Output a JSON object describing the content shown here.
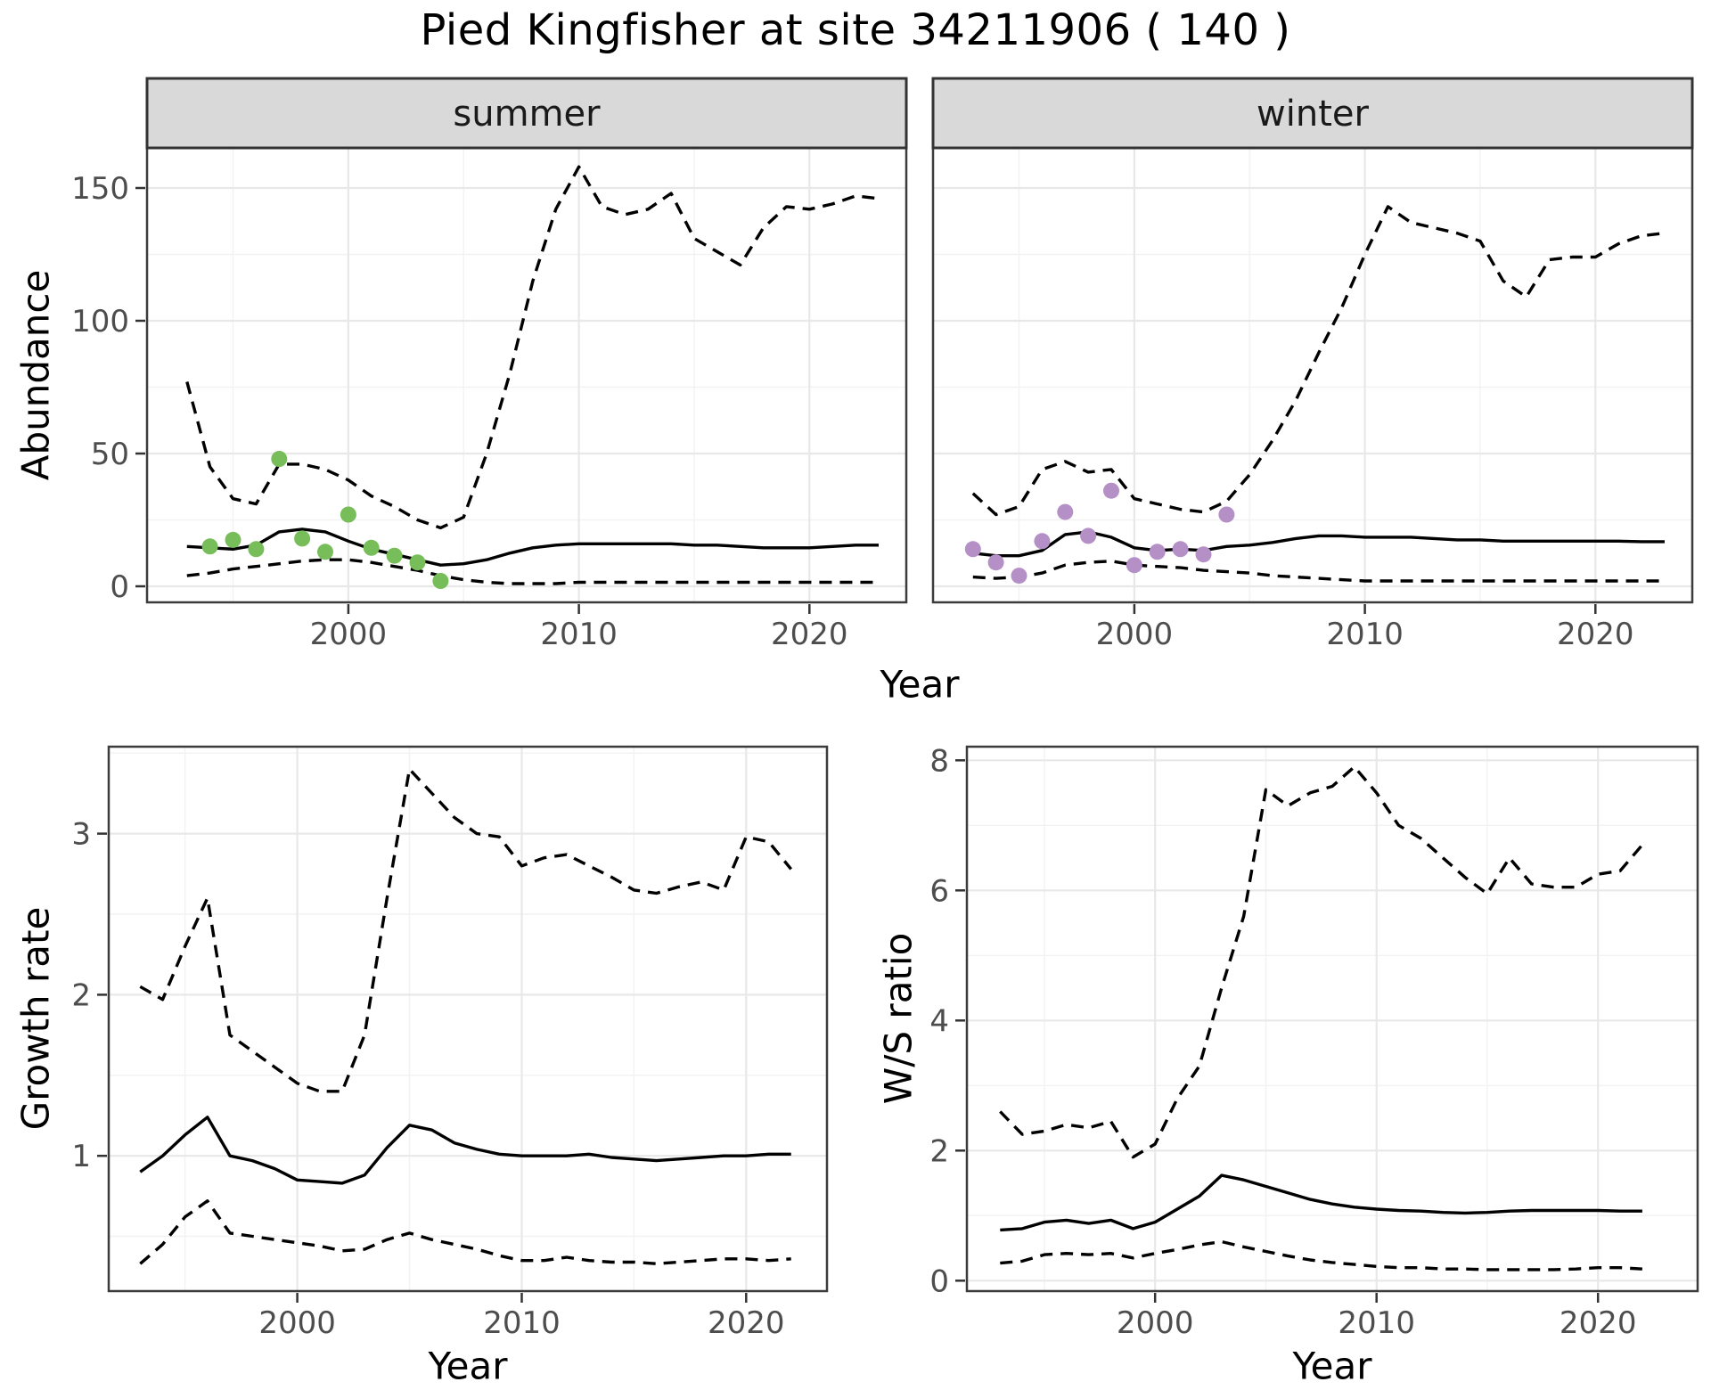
{
  "title": "Pied Kingfisher at site 34211906 ( 140 )",
  "colors": {
    "summer_points": "#77bd5a",
    "winter_points": "#b490c6",
    "line": "#000000",
    "grid_major": "#e8e8e8",
    "grid_minor": "#f2f2f2",
    "strip_bg": "#d9d9d9",
    "panel_border": "#3c3c3c",
    "tick_text": "#4d4d4d"
  },
  "chart_data": [
    {
      "id": "abundance_summer",
      "type": "line",
      "facet_label": "summer",
      "xlabel": "Year",
      "ylabel": "Abundance",
      "xlim": [
        1991.27,
        2024.2
      ],
      "ylim": [
        -6.04,
        165.1
      ],
      "xticks": {
        "values": [
          2000,
          2010,
          2020
        ],
        "labels": [
          "2000",
          "2010",
          "2020"
        ]
      },
      "yticks": {
        "values": [
          0,
          50,
          100,
          150
        ],
        "labels": [
          "0",
          "50",
          "100",
          "150"
        ]
      },
      "minor_x": [
        1995,
        2005,
        2015
      ],
      "minor_y": [
        25,
        75,
        125
      ],
      "show_y_axis": true,
      "x_years": [
        1993,
        1994,
        1995,
        1996,
        1997,
        1998,
        1999,
        2000,
        2001,
        2002,
        2003,
        2004,
        2005,
        2006,
        2007,
        2008,
        2009,
        2010,
        2011,
        2012,
        2013,
        2014,
        2015,
        2016,
        2017,
        2018,
        2019,
        2020,
        2021,
        2022,
        2023
      ],
      "series": [
        {
          "name": "upper_ci",
          "style": "dashed",
          "values": [
            77,
            45,
            33,
            31,
            46,
            46,
            44,
            40,
            34,
            30,
            25,
            22,
            26,
            50,
            80,
            115,
            142,
            158,
            143,
            140,
            142,
            148,
            131,
            126,
            121,
            135,
            143,
            142,
            144,
            147,
            146
          ]
        },
        {
          "name": "lower_ci",
          "style": "dashed",
          "values": [
            4,
            5,
            6.5,
            7.5,
            8.5,
            9.5,
            10,
            10,
            9,
            7.5,
            6,
            4,
            2.5,
            1.5,
            1,
            1,
            1,
            1.5,
            1.5,
            1.5,
            1.5,
            1.5,
            1.5,
            1.5,
            1.5,
            1.5,
            1.5,
            1.5,
            1.5,
            1.5,
            1.5
          ]
        },
        {
          "name": "median",
          "style": "solid",
          "values": [
            15,
            14.5,
            14,
            15.5,
            20.5,
            21.5,
            20.5,
            17,
            14,
            12,
            10,
            8,
            8.5,
            10,
            12.5,
            14.5,
            15.5,
            16,
            16,
            16,
            16,
            16,
            15.5,
            15.5,
            15,
            14.5,
            14.5,
            14.5,
            15,
            15.5,
            15.5
          ]
        }
      ],
      "observations": {
        "color_key": "summer_points",
        "x": [
          1994,
          1995,
          1996,
          1997,
          1998,
          1999,
          2000,
          2001,
          2002,
          2003,
          2004
        ],
        "y": [
          15,
          17.5,
          14,
          48,
          18,
          13,
          27,
          14.5,
          11.5,
          9,
          2
        ]
      }
    },
    {
      "id": "abundance_winter",
      "type": "line",
      "facet_label": "winter",
      "xlabel": "Year",
      "ylabel": "Abundance",
      "xlim": [
        1991.27,
        2024.2
      ],
      "ylim": [
        -6.04,
        165.1
      ],
      "xticks": {
        "values": [
          2000,
          2010,
          2020
        ],
        "labels": [
          "2000",
          "2010",
          "2020"
        ]
      },
      "yticks": {
        "values": [
          0,
          50,
          100,
          150
        ],
        "labels": [
          "0",
          "50",
          "100",
          "150"
        ]
      },
      "minor_x": [
        1995,
        2005,
        2015
      ],
      "minor_y": [
        25,
        75,
        125
      ],
      "show_y_axis": false,
      "x_years": [
        1993,
        1994,
        1995,
        1996,
        1997,
        1998,
        1999,
        2000,
        2001,
        2002,
        2003,
        2004,
        2005,
        2006,
        2007,
        2008,
        2009,
        2010,
        2011,
        2012,
        2013,
        2014,
        2015,
        2016,
        2017,
        2018,
        2019,
        2020,
        2021,
        2022,
        2023
      ],
      "series": [
        {
          "name": "upper_ci",
          "style": "dashed",
          "values": [
            35,
            27,
            30,
            44,
            47,
            43,
            44,
            33,
            31,
            29,
            28,
            32,
            42,
            55,
            70,
            88,
            105,
            125,
            143,
            137,
            135,
            133,
            130,
            115,
            109,
            123,
            124,
            124,
            129,
            132,
            133
          ]
        },
        {
          "name": "lower_ci",
          "style": "dashed",
          "values": [
            3.5,
            3,
            3.5,
            5,
            8,
            9,
            9.5,
            8,
            7.5,
            7,
            6,
            5.5,
            5,
            4,
            3.5,
            3,
            2.5,
            2,
            2,
            2,
            2,
            2,
            2,
            2,
            2,
            2,
            2,
            2,
            2,
            2,
            2
          ]
        },
        {
          "name": "median",
          "style": "solid",
          "values": [
            12.5,
            11.5,
            11.5,
            13.5,
            19.5,
            20.5,
            18.5,
            14.5,
            13.5,
            14,
            13.5,
            15,
            15.5,
            16.5,
            18,
            19,
            19,
            18.5,
            18.5,
            18.5,
            18,
            17.5,
            17.5,
            17,
            17,
            17,
            17,
            17,
            17,
            16.8,
            16.8
          ]
        }
      ],
      "observations": {
        "color_key": "winter_points",
        "x": [
          1993,
          1994,
          1995,
          1996,
          1997,
          1998,
          1999,
          2000,
          2001,
          2002,
          2003,
          2004
        ],
        "y": [
          14,
          9,
          4,
          17,
          28,
          19,
          36,
          8,
          13,
          14,
          12,
          27
        ]
      }
    },
    {
      "id": "growth_rate",
      "type": "line",
      "facet_label": null,
      "xlabel": "Year",
      "ylabel": "Growth rate",
      "xlim": [
        1991.6,
        2023.6
      ],
      "ylim": [
        0.16,
        3.54
      ],
      "xticks": {
        "values": [
          2000,
          2010,
          2020
        ],
        "labels": [
          "2000",
          "2010",
          "2020"
        ]
      },
      "yticks": {
        "values": [
          1,
          2,
          3
        ],
        "labels": [
          "1",
          "2",
          "3"
        ]
      },
      "minor_x": [
        1995,
        2005,
        2015
      ],
      "minor_y": [
        0.5,
        1.5,
        2.5,
        3.5
      ],
      "show_y_axis": true,
      "x_years": [
        1993,
        1994,
        1995,
        1996,
        1997,
        1998,
        1999,
        2000,
        2001,
        2002,
        2003,
        2004,
        2005,
        2006,
        2007,
        2008,
        2009,
        2010,
        2011,
        2012,
        2013,
        2014,
        2015,
        2016,
        2017,
        2018,
        2019,
        2020,
        2021,
        2022
      ],
      "series": [
        {
          "name": "upper_ci",
          "style": "dashed",
          "values": [
            2.05,
            1.97,
            2.3,
            2.6,
            1.75,
            1.65,
            1.55,
            1.45,
            1.4,
            1.4,
            1.75,
            2.6,
            3.4,
            3.25,
            3.1,
            3.0,
            2.98,
            2.8,
            2.85,
            2.87,
            2.8,
            2.73,
            2.65,
            2.63,
            2.67,
            2.7,
            2.65,
            2.98,
            2.95,
            2.78
          ]
        },
        {
          "name": "lower_ci",
          "style": "dashed",
          "values": [
            0.33,
            0.45,
            0.62,
            0.72,
            0.52,
            0.5,
            0.48,
            0.46,
            0.44,
            0.41,
            0.42,
            0.48,
            0.52,
            0.48,
            0.45,
            0.42,
            0.38,
            0.35,
            0.35,
            0.37,
            0.35,
            0.34,
            0.34,
            0.33,
            0.34,
            0.35,
            0.36,
            0.36,
            0.35,
            0.36
          ]
        },
        {
          "name": "median",
          "style": "solid",
          "values": [
            0.9,
            1.0,
            1.13,
            1.24,
            1.0,
            0.97,
            0.92,
            0.85,
            0.84,
            0.83,
            0.88,
            1.05,
            1.19,
            1.16,
            1.08,
            1.04,
            1.01,
            1.0,
            1.0,
            1.0,
            1.01,
            0.99,
            0.98,
            0.97,
            0.98,
            0.99,
            1.0,
            1.0,
            1.01,
            1.01
          ]
        }
      ],
      "observations": null
    },
    {
      "id": "ws_ratio",
      "type": "line",
      "facet_label": null,
      "xlabel": "Year",
      "ylabel": "W/S ratio",
      "xlim": [
        1991.5,
        2024.5
      ],
      "ylim": [
        -0.16,
        8.21
      ],
      "xticks": {
        "values": [
          2000,
          2010,
          2020
        ],
        "labels": [
          "2000",
          "2010",
          "2020"
        ]
      },
      "yticks": {
        "values": [
          0,
          2,
          4,
          6,
          8
        ],
        "labels": [
          "0",
          "2",
          "4",
          "6",
          "8"
        ]
      },
      "minor_x": [
        1995,
        2005,
        2015
      ],
      "minor_y": [
        1,
        3,
        5,
        7
      ],
      "show_y_axis": true,
      "x_years": [
        1993,
        1994,
        1995,
        1996,
        1997,
        1998,
        1999,
        2000,
        2001,
        2002,
        2003,
        2004,
        2005,
        2006,
        2007,
        2008,
        2009,
        2010,
        2011,
        2012,
        2013,
        2014,
        2015,
        2016,
        2017,
        2018,
        2019,
        2020,
        2021,
        2022
      ],
      "series": [
        {
          "name": "upper_ci",
          "style": "dashed",
          "values": [
            2.6,
            2.25,
            2.3,
            2.4,
            2.35,
            2.45,
            1.9,
            2.1,
            2.8,
            3.3,
            4.5,
            5.6,
            7.55,
            7.3,
            7.5,
            7.6,
            7.9,
            7.5,
            7.0,
            6.8,
            6.5,
            6.2,
            5.95,
            6.5,
            6.1,
            6.05,
            6.05,
            6.25,
            6.3,
            6.7
          ]
        },
        {
          "name": "lower_ci",
          "style": "dashed",
          "values": [
            0.27,
            0.3,
            0.4,
            0.42,
            0.4,
            0.42,
            0.35,
            0.42,
            0.48,
            0.55,
            0.6,
            0.52,
            0.45,
            0.38,
            0.32,
            0.28,
            0.25,
            0.22,
            0.2,
            0.2,
            0.18,
            0.18,
            0.17,
            0.17,
            0.17,
            0.17,
            0.18,
            0.2,
            0.2,
            0.18
          ]
        },
        {
          "name": "median",
          "style": "solid",
          "values": [
            0.78,
            0.8,
            0.9,
            0.93,
            0.88,
            0.93,
            0.8,
            0.9,
            1.1,
            1.3,
            1.62,
            1.55,
            1.45,
            1.35,
            1.25,
            1.18,
            1.13,
            1.1,
            1.08,
            1.07,
            1.05,
            1.04,
            1.05,
            1.07,
            1.08,
            1.08,
            1.08,
            1.08,
            1.07,
            1.07
          ]
        }
      ],
      "observations": null
    }
  ]
}
